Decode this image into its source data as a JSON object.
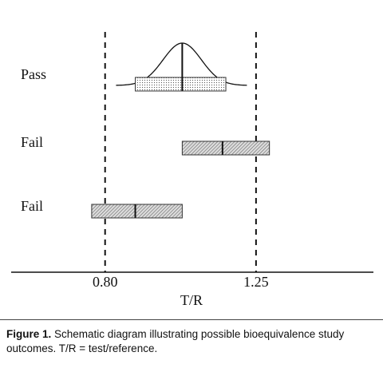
{
  "chart_data": {
    "type": "interval",
    "xlabel": "T/R",
    "xlim": [
      0.52,
      1.6
    ],
    "xticks": [
      {
        "value": 0.8,
        "label": "0.80"
      },
      {
        "value": 1.25,
        "label": "1.25"
      }
    ],
    "reference_lines": "dashed",
    "rows": [
      {
        "label": "Pass",
        "low": 0.89,
        "estimate": 1.03,
        "high": 1.16,
        "pattern": "dots",
        "curve": true
      },
      {
        "label": "Fail",
        "low": 1.03,
        "estimate": 1.15,
        "high": 1.29,
        "pattern": "hatch",
        "curve": false
      },
      {
        "label": "Fail",
        "low": 0.76,
        "estimate": 0.89,
        "high": 1.03,
        "pattern": "hatch",
        "curve": false
      }
    ]
  },
  "caption": {
    "label": "Figure 1.",
    "text": "Schematic diagram illustrating possible bioequivalence study outcomes. T/R = test/reference."
  }
}
